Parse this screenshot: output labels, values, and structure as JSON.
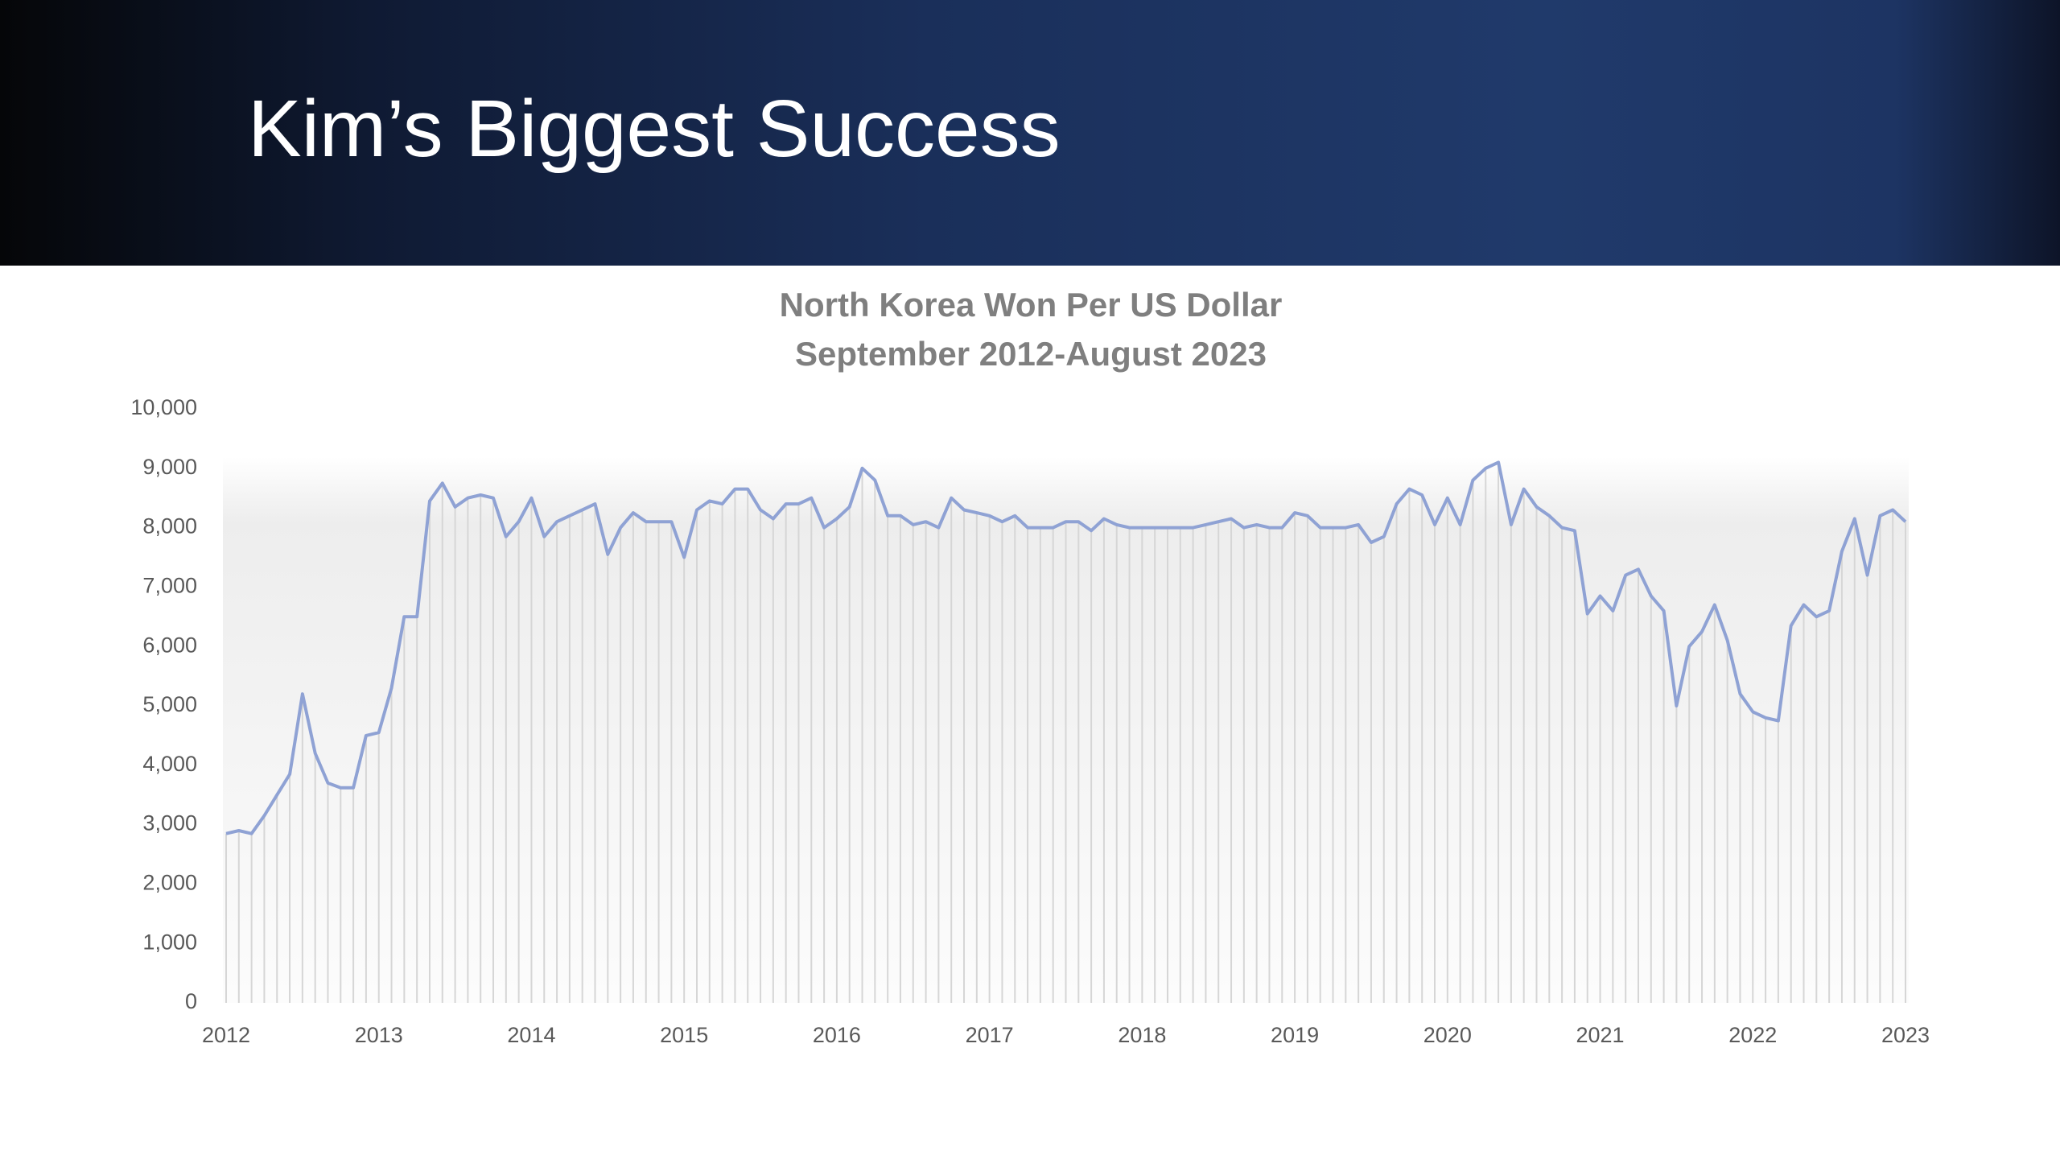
{
  "header": {
    "title": "Kim’s Biggest Success"
  },
  "chart_data": {
    "type": "line",
    "title": "North Korea Won Per US Dollar",
    "subtitle": "September 2012-August 2023",
    "categories": [
      "2012",
      null,
      null,
      null,
      null,
      null,
      null,
      null,
      null,
      null,
      null,
      null,
      "2013",
      null,
      null,
      null,
      null,
      null,
      null,
      null,
      null,
      null,
      null,
      null,
      "2014",
      null,
      null,
      null,
      null,
      null,
      null,
      null,
      null,
      null,
      null,
      null,
      "2015",
      null,
      null,
      null,
      null,
      null,
      null,
      null,
      null,
      null,
      null,
      null,
      "2016",
      null,
      null,
      null,
      null,
      null,
      null,
      null,
      null,
      null,
      null,
      null,
      "2017",
      null,
      null,
      null,
      null,
      null,
      null,
      null,
      null,
      null,
      null,
      null,
      "2018",
      null,
      null,
      null,
      null,
      null,
      null,
      null,
      null,
      null,
      null,
      null,
      "2019",
      null,
      null,
      null,
      null,
      null,
      null,
      null,
      null,
      null,
      null,
      null,
      "2020",
      null,
      null,
      null,
      null,
      null,
      null,
      null,
      null,
      null,
      null,
      null,
      "2021",
      null,
      null,
      null,
      null,
      null,
      null,
      null,
      null,
      null,
      null,
      null,
      "2022",
      null,
      null,
      null,
      null,
      null,
      null,
      null,
      null,
      null,
      null,
      null,
      "2023"
    ],
    "values": [
      2850,
      2900,
      2850,
      3150,
      3500,
      3850,
      5200,
      4200,
      3700,
      3620,
      3620,
      4500,
      4550,
      5300,
      6500,
      6500,
      8450,
      8750,
      8350,
      8500,
      8550,
      8500,
      7850,
      8100,
      8500,
      7850,
      8100,
      8200,
      8300,
      8400,
      7550,
      8000,
      8250,
      8100,
      8100,
      8100,
      7500,
      8300,
      8450,
      8400,
      8650,
      8650,
      8300,
      8150,
      8400,
      8400,
      8500,
      8000,
      8150,
      8350,
      9000,
      8800,
      8200,
      8200,
      8050,
      8100,
      8000,
      8500,
      8300,
      8250,
      8200,
      8100,
      8200,
      8000,
      8000,
      8000,
      8100,
      8100,
      7950,
      8150,
      8050,
      8000,
      8000,
      8000,
      8000,
      8000,
      8000,
      8050,
      8100,
      8150,
      8000,
      8050,
      8000,
      8000,
      8250,
      8200,
      8000,
      8000,
      8000,
      8050,
      7750,
      7850,
      8400,
      8650,
      8550,
      8050,
      8500,
      8050,
      8800,
      9000,
      9100,
      8050,
      8650,
      8350,
      8200,
      8000,
      7950,
      6550,
      6850,
      6600,
      7200,
      7300,
      6850,
      6600,
      5000,
      6000,
      6250,
      6700,
      6100,
      5200,
      4900,
      4800,
      4750,
      6350,
      6700,
      6500,
      6600,
      7600,
      8150,
      7200,
      8200,
      8300,
      8100
    ],
    "color": "#8fa2d4",
    "drop_line_color": "#d6d6d6",
    "ylim": [
      0,
      10000
    ],
    "yticks": [
      0,
      {
        "value": 1000,
        "label": "1,000"
      },
      {
        "value": 2000,
        "label": "2,000"
      },
      {
        "value": 3000,
        "label": "3,000"
      },
      {
        "value": 4000,
        "label": "4,000"
      },
      {
        "value": 5000,
        "label": "5,000"
      },
      {
        "value": 6000,
        "label": "6,000"
      },
      {
        "value": 7000,
        "label": "7,000"
      },
      {
        "value": 8000,
        "label": "8,000"
      },
      {
        "value": 9000,
        "label": "9,000"
      },
      {
        "value": 10000,
        "label": "10,000"
      }
    ],
    "grid": false
  }
}
